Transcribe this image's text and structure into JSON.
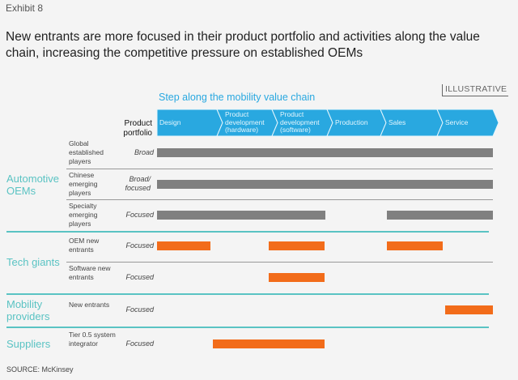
{
  "exhibit": "Exhibit 8",
  "title": "New entrants are more focused in their product portfolio and activities along the value chain, increasing the competitive pressure on established OEMs",
  "value_chain_label": "Step along the mobility value chain",
  "illustrative": "ILLUSTRATIVE",
  "product_portfolio_header": "Product portfolio",
  "stages": [
    "Design",
    "Product development (hardware)",
    "Product development (software)",
    "Production",
    "Sales",
    "Service"
  ],
  "colors": {
    "stage": "#29a8e0",
    "oem_bar": "#808080",
    "new_bar": "#f26c1a",
    "group_text": "#5ac3c3"
  },
  "groups": [
    {
      "name": "Automotive OEMs",
      "rows": [
        {
          "player": "Global established players",
          "portfolio": "Broad",
          "bars": [
            [
              0,
              6
            ]
          ],
          "color": "oem"
        },
        {
          "player": "Chinese emerging players",
          "portfolio": "Broad/ focused",
          "bars": [
            [
              0,
              6
            ]
          ],
          "color": "oem"
        },
        {
          "player": "Specialty emerging players",
          "portfolio": "Focused",
          "bars": [
            [
              0,
              3
            ]
          ],
          "bars2": [
            [
              4.1,
              6
            ]
          ],
          "color": "oem"
        }
      ]
    },
    {
      "name": "Tech giants",
      "rows": [
        {
          "player": "OEM new entrants",
          "portfolio": "Focused",
          "bars": [
            [
              0,
              0.95
            ],
            [
              2,
              3
            ],
            [
              4.1,
              5.1
            ]
          ],
          "color": "new"
        },
        {
          "player": "Software new entrants",
          "portfolio": "Focused",
          "bars": [
            [
              2,
              3
            ]
          ],
          "color": "new"
        }
      ]
    },
    {
      "name": "Mobility providers",
      "rows": [
        {
          "player": "New entrants",
          "portfolio": "Focused",
          "bars": [
            [
              5.15,
              6
            ]
          ],
          "color": "new"
        }
      ]
    },
    {
      "name": "Suppliers",
      "rows": [
        {
          "player": "Tier 0.5 system integrator",
          "portfolio": "Focused",
          "bars": [
            [
              1,
              3
            ]
          ],
          "color": "new"
        }
      ]
    }
  ],
  "source": "SOURCE: McKinsey"
}
